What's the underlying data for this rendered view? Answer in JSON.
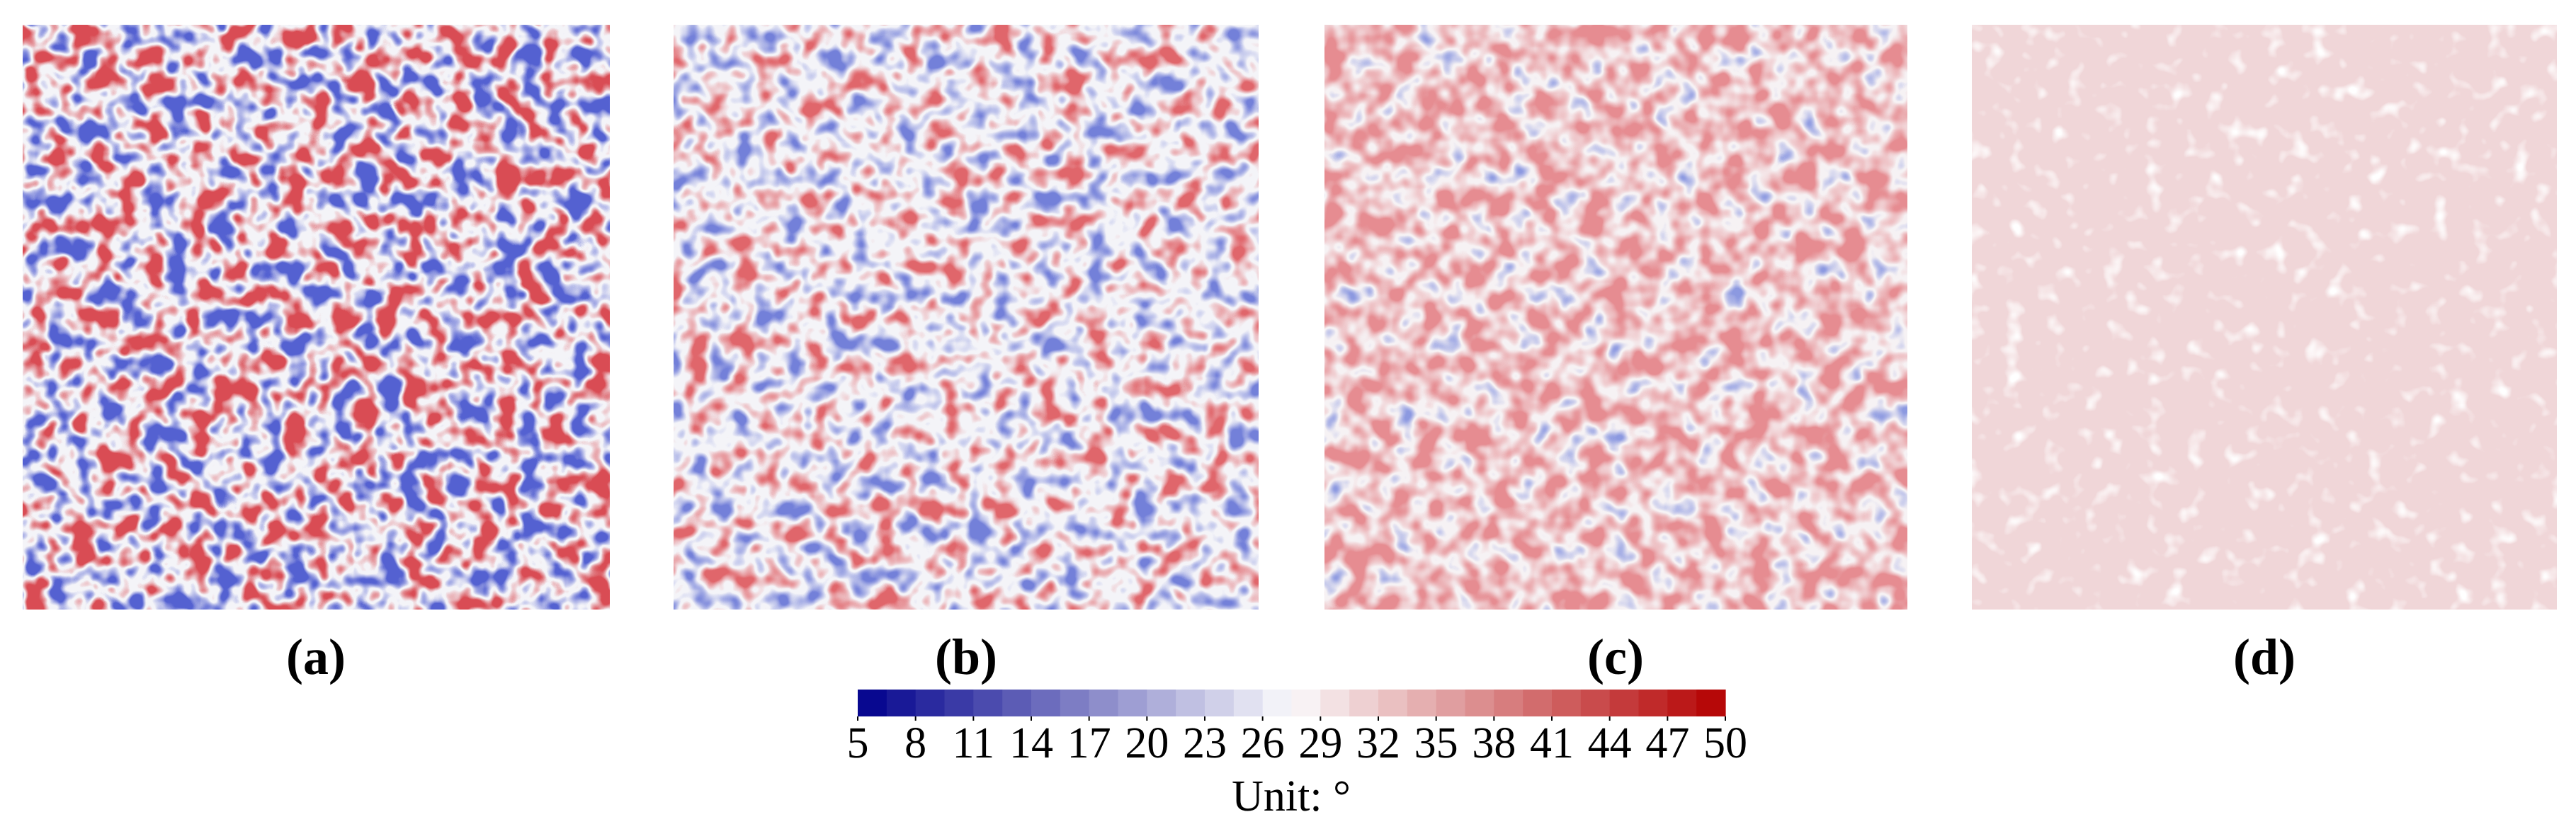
{
  "panels": [
    {
      "label": "(a)"
    },
    {
      "label": "(b)"
    },
    {
      "label": "(c)"
    },
    {
      "label": "(d)"
    }
  ],
  "colorbar": {
    "range": [
      5,
      50
    ],
    "ticks": [
      5,
      8,
      11,
      14,
      17,
      20,
      23,
      26,
      29,
      32,
      35,
      38,
      41,
      44,
      47,
      50
    ],
    "label": "Unit: °"
  }
}
